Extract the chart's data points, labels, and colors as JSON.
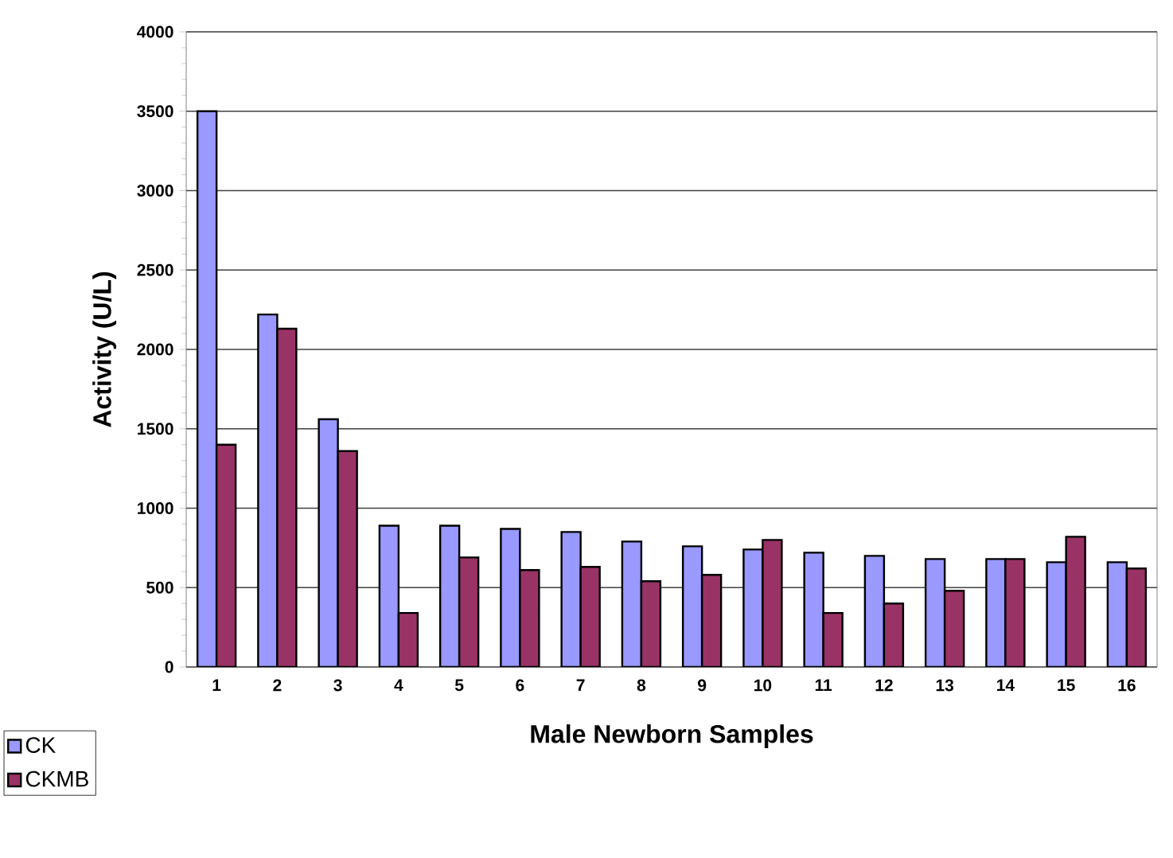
{
  "chart_data": {
    "type": "bar",
    "xlabel": "Male Newborn Samples",
    "ylabel": "Activity (U/L)",
    "categories": [
      "1",
      "2",
      "3",
      "4",
      "5",
      "6",
      "7",
      "8",
      "9",
      "10",
      "11",
      "12",
      "13",
      "14",
      "15",
      "16"
    ],
    "series": [
      {
        "name": "CK",
        "color": "#9999ff",
        "values": [
          3500,
          2220,
          1560,
          890,
          890,
          870,
          850,
          790,
          760,
          740,
          720,
          700,
          680,
          680,
          660,
          660
        ]
      },
      {
        "name": "CKMB",
        "color": "#993366",
        "values": [
          1400,
          2130,
          1360,
          340,
          690,
          610,
          630,
          540,
          580,
          800,
          340,
          400,
          480,
          680,
          820,
          620
        ]
      }
    ],
    "ylim": [
      0,
      4000
    ],
    "yticks": [
      0,
      500,
      1000,
      1500,
      2000,
      2500,
      3000,
      3500,
      4000
    ],
    "grid": "y",
    "legend": "bottom left"
  }
}
